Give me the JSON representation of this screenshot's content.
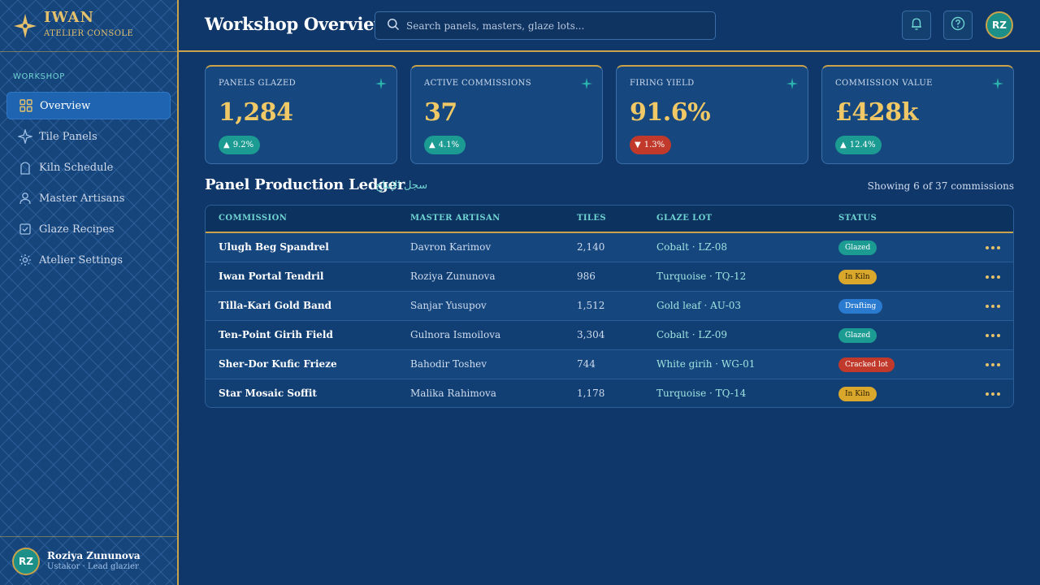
{
  "brand": {
    "name": "IWAN",
    "subtitle": "ATELIER CONSOLE"
  },
  "sidebar": {
    "section_label": "WORKSHOP",
    "items": [
      {
        "label": "Overview",
        "icon": "grid-icon",
        "active": true
      },
      {
        "label": "Tile Panels",
        "icon": "star-icon",
        "active": false
      },
      {
        "label": "Kiln Schedule",
        "icon": "arch-icon",
        "active": false
      },
      {
        "label": "Master Artisans",
        "icon": "user-icon",
        "active": false
      },
      {
        "label": "Glaze Recipes",
        "icon": "checkbox-icon",
        "active": false
      },
      {
        "label": "Atelier Settings",
        "icon": "gear-icon",
        "active": false
      }
    ]
  },
  "user": {
    "initials": "RZ",
    "name": "Roziya Zununova",
    "role": "Ustakor · Lead glazier"
  },
  "header": {
    "title": "Workshop Overview",
    "search_placeholder": "Search panels, masters, glaze lots...",
    "icons": [
      "bell-icon",
      "help-icon"
    ]
  },
  "kpis": [
    {
      "label": "PANELS GLAZED",
      "value": "1,284",
      "delta": "9.2%",
      "direction": "up"
    },
    {
      "label": "ACTIVE COMMISSIONS",
      "value": "37",
      "delta": "4.1%",
      "direction": "up"
    },
    {
      "label": "FIRING YIELD",
      "value": "91.6%",
      "delta": "1.3%",
      "direction": "down"
    },
    {
      "label": "COMMISSION VALUE",
      "value": "£428k",
      "delta": "12.4%",
      "direction": "up"
    }
  ],
  "ledger": {
    "title": "Panel Production Ledger",
    "title_arabic": "سجل الإنتاج",
    "count_text": "Showing 6 of 37 commissions",
    "columns": [
      "COMMISSION",
      "MASTER ARTISAN",
      "TILES",
      "GLAZE LOT",
      "STATUS"
    ],
    "rows": [
      {
        "commission": "Ulugh Beg Spandrel",
        "artisan": "Davron Karimov",
        "tiles": "2,140",
        "lot": "Cobalt · LZ-08",
        "status": "Glazed"
      },
      {
        "commission": "Iwan Portal Tendril",
        "artisan": "Roziya Zununova",
        "tiles": "986",
        "lot": "Turquoise · TQ-12",
        "status": "In Kiln"
      },
      {
        "commission": "Tilla-Kari Gold Band",
        "artisan": "Sanjar Yusupov",
        "tiles": "1,512",
        "lot": "Gold leaf · AU-03",
        "status": "Drafting"
      },
      {
        "commission": "Ten-Point Girih Field",
        "artisan": "Gulnora Ismoilova",
        "tiles": "3,304",
        "lot": "Cobalt · LZ-09",
        "status": "Glazed"
      },
      {
        "commission": "Sher-Dor Kufic Frieze",
        "artisan": "Bahodir Toshev",
        "tiles": "744",
        "lot": "White girih · WG-01",
        "status": "Cracked lot"
      },
      {
        "commission": "Star Mosaic Soffit",
        "artisan": "Malika Rahimova",
        "tiles": "1,178",
        "lot": "Turquoise · TQ-14",
        "status": "In Kiln"
      }
    ]
  },
  "status_colors": {
    "Glazed": {
      "bg": "#1c9b92",
      "fg": "#ffffff"
    },
    "In Kiln": {
      "bg": "#d8a72c",
      "fg": "#2a1d04"
    },
    "Drafting": {
      "bg": "#2a7bd0",
      "fg": "#ffffff"
    },
    "Cracked lot": {
      "bg": "#c0392b",
      "fg": "#ffffff"
    }
  },
  "colors": {
    "accent_gold": "#c9a24a",
    "teal": "#6fd3d0",
    "bg": "#10376a"
  }
}
